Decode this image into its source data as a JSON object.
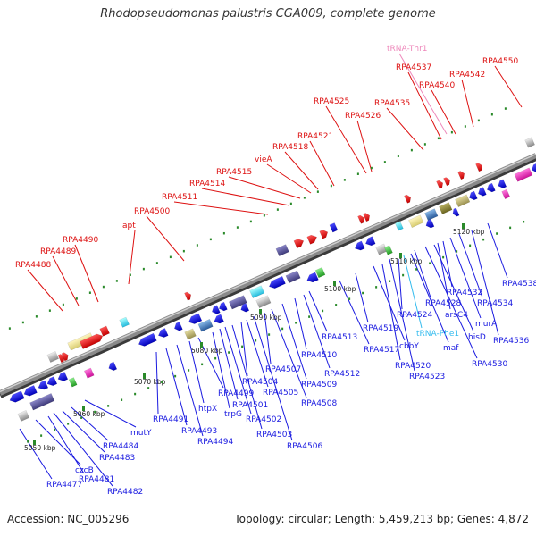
{
  "title": "Rhodopseudomonas palustris CGA009, complete genome",
  "footer": {
    "accession": "Accession: NC_005296",
    "summary": "Topology: circular; Length: 5,459,213 bp; Genes: 4,872"
  },
  "colors": {
    "backbone": "#8a8a8a",
    "upper_labels": "#dd1111",
    "trna_labels": "#ee88bb",
    "lower_labels": "#1a1ae0",
    "trna_lower": "#33bbee",
    "ticks": "#2a8a2a",
    "scale_text": "#222222"
  },
  "scale_ticks": [
    "5050 kbp",
    "5060 kbp",
    "5070 kbp",
    "5080 kbp",
    "5090 kbp",
    "5100 kbp",
    "5110 kbp",
    "5120 kbp"
  ],
  "upper_labels": [
    "RPA4488",
    "RPA4489",
    "RPA4490",
    "apt",
    "RPA4500",
    "RPA4511",
    "RPA4514",
    "RPA4515",
    "vieA",
    "RPA4518",
    "RPA4521",
    "RPA4525",
    "RPA4526",
    "RPA4535",
    "RPA4537",
    "tRNA-Thr1",
    "RPA4540",
    "RPA4542",
    "RPA4550"
  ],
  "lower_labels": [
    "RPA4477",
    "czcB",
    "RPA4481",
    "RPA4482",
    "RPA4483",
    "RPA4484",
    "mutY",
    "RPA4491",
    "RPA4493",
    "RPA4494",
    "htpX",
    "RPA4499",
    "trpG",
    "RPA4501",
    "RPA4502",
    "RPA4503",
    "RPA4504",
    "RPA4505",
    "RPA4506",
    "RPA4507",
    "RPA4508",
    "RPA4509",
    "RPA4510",
    "RPA4512",
    "RPA4513",
    "RPA4517",
    "RPA4519",
    "cbbY",
    "RPA4520",
    "RPA4523",
    "RPA4524",
    "tRNA-Phe1",
    "maf",
    "RPA4528",
    "RPA4530",
    "hisD",
    "arsC4",
    "RPA4532",
    "murA",
    "RPA4534",
    "RPA4536",
    "RPA4538"
  ]
}
